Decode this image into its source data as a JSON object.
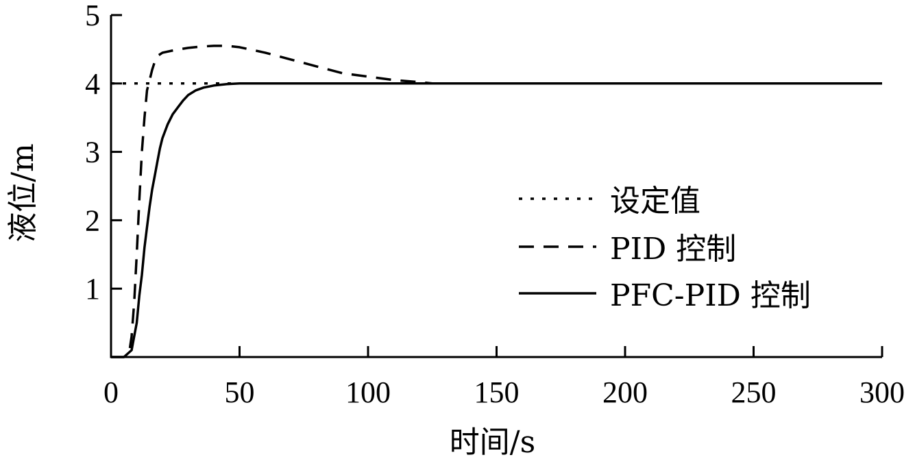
{
  "chart_data": {
    "type": "line",
    "xlabel": "时间/s",
    "ylabel": "液位/m",
    "xlim": [
      0,
      300
    ],
    "ylim": [
      0,
      5
    ],
    "xticks": [
      0,
      50,
      100,
      150,
      200,
      250,
      300
    ],
    "yticks": [
      1,
      2,
      3,
      4,
      5
    ],
    "grid": false,
    "legend_position": "right",
    "series": [
      {
        "name": "设定值",
        "style": "dotted",
        "color": "#000000",
        "x": [
          0,
          300
        ],
        "y": [
          4,
          4
        ]
      },
      {
        "name": "PID 控制",
        "style": "dashed",
        "color": "#000000",
        "x": [
          0,
          5,
          7,
          8,
          9,
          10,
          11,
          12,
          13,
          14,
          15,
          16,
          17,
          18,
          20,
          25,
          30,
          35,
          40,
          45,
          50,
          60,
          70,
          80,
          90,
          100,
          110,
          120,
          125,
          130,
          300
        ],
        "y": [
          0,
          0,
          0.05,
          0.3,
          0.8,
          1.5,
          2.3,
          3.0,
          3.5,
          3.9,
          4.05,
          4.2,
          4.32,
          4.4,
          4.45,
          4.49,
          4.52,
          4.54,
          4.55,
          4.55,
          4.53,
          4.45,
          4.35,
          4.25,
          4.15,
          4.1,
          4.05,
          4.02,
          4.0,
          4.0,
          4.0
        ]
      },
      {
        "name": "PFC-PID 控制",
        "style": "solid",
        "color": "#000000",
        "x": [
          0,
          5,
          8,
          10,
          11,
          12,
          13,
          14,
          15,
          16,
          17,
          18,
          19,
          20,
          22,
          24,
          26,
          28,
          30,
          33,
          36,
          40,
          45,
          50,
          55,
          60,
          300
        ],
        "y": [
          0,
          0,
          0.1,
          0.5,
          0.9,
          1.2,
          1.6,
          1.9,
          2.2,
          2.45,
          2.65,
          2.85,
          3.05,
          3.2,
          3.4,
          3.55,
          3.65,
          3.75,
          3.83,
          3.9,
          3.94,
          3.97,
          3.99,
          4.0,
          4.0,
          4.0,
          4.0
        ]
      }
    ]
  }
}
